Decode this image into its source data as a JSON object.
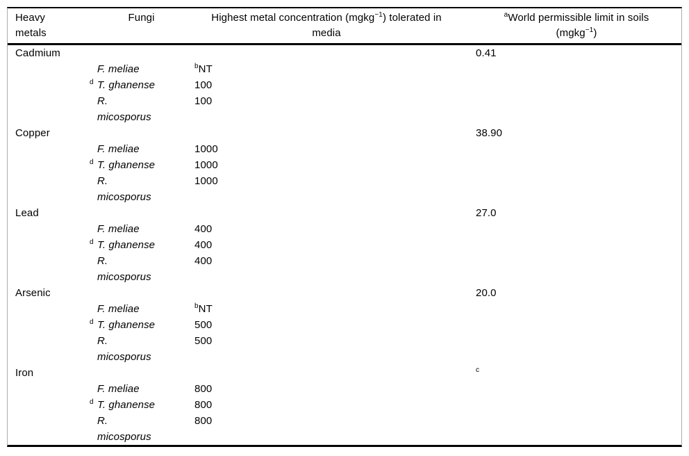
{
  "page": {
    "background": "#ffffff",
    "rule_color": "#000000",
    "side_border_color": "#ababab"
  },
  "table": {
    "header": {
      "col1": "Heavy\nmetals",
      "col2": "Fungi",
      "col3": {
        "pre": "Highest metal concentration (mgkg",
        "sup": "−1",
        "post": ") tolerated in\nmedia"
      },
      "col4": {
        "sup": "a",
        "mid": "World permissible limit in soils\n(mgkg",
        "sup2": "−1",
        "post": ")"
      }
    },
    "groups": [
      {
        "metal": "Cadmium",
        "limit_sup": "",
        "limit": "0.41",
        "rows": [
          {
            "sup": "",
            "fungus": "F. meliae",
            "conc_sup": "b",
            "conc": "NT"
          },
          {
            "sup": "d",
            "fungus": "T. ghanense",
            "conc_sup": "",
            "conc": "100"
          },
          {
            "sup": "",
            "fungus": "R.\nmicosporus",
            "conc_sup": "",
            "conc": "100"
          }
        ]
      },
      {
        "metal": "Copper",
        "limit_sup": "",
        "limit": "38.90",
        "rows": [
          {
            "sup": "",
            "fungus": "F. meliae",
            "conc_sup": "",
            "conc": "1000"
          },
          {
            "sup": "d",
            "fungus": "T. ghanense",
            "conc_sup": "",
            "conc": "1000"
          },
          {
            "sup": "",
            "fungus": "R.\nmicosporus",
            "conc_sup": "",
            "conc": "1000"
          }
        ]
      },
      {
        "metal": "Lead",
        "limit_sup": "",
        "limit": "27.0",
        "rows": [
          {
            "sup": "",
            "fungus": "F. meliae",
            "conc_sup": "",
            "conc": "400"
          },
          {
            "sup": "d",
            "fungus": "T. ghanense",
            "conc_sup": "",
            "conc": "400"
          },
          {
            "sup": "",
            "fungus": "R.\nmicosporus",
            "conc_sup": "",
            "conc": "400"
          }
        ]
      },
      {
        "metal": "Arsenic",
        "limit_sup": "",
        "limit": "20.0",
        "rows": [
          {
            "sup": "",
            "fungus": "F. meliae",
            "conc_sup": "b",
            "conc": "NT"
          },
          {
            "sup": "d",
            "fungus": "T. ghanense",
            "conc_sup": "",
            "conc": "500"
          },
          {
            "sup": "",
            "fungus": "R.\nmicosporus",
            "conc_sup": "",
            "conc": "500"
          }
        ]
      },
      {
        "metal": "Iron",
        "limit_sup": "c",
        "limit": "",
        "rows": [
          {
            "sup": "",
            "fungus": "F. meliae",
            "conc_sup": "",
            "conc": "800"
          },
          {
            "sup": "d",
            "fungus": "T. ghanense",
            "conc_sup": "",
            "conc": "800"
          },
          {
            "sup": "",
            "fungus": "R.\nmicosporus",
            "conc_sup": "",
            "conc": "800"
          }
        ]
      }
    ]
  }
}
